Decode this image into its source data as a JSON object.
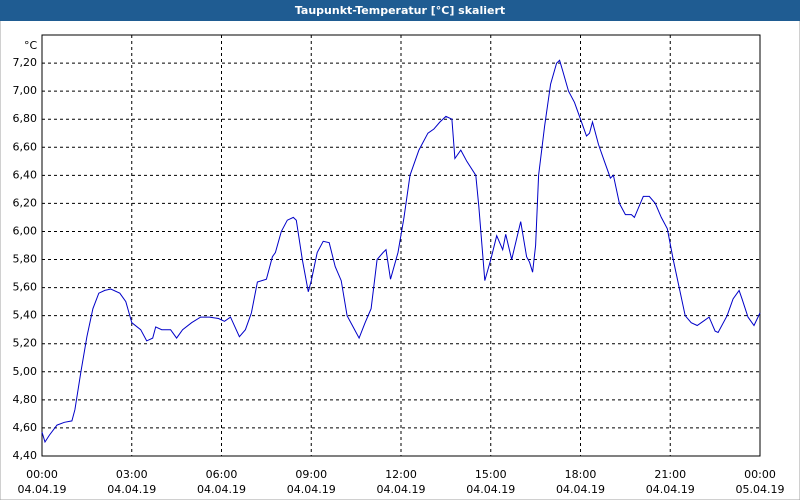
{
  "chart_data": {
    "type": "line",
    "title": "Taupunkt-Temperatur [°C] skaliert",
    "y_unit": "°C",
    "xlim": [
      0,
      24
    ],
    "ylim": [
      4.4,
      7.4
    ],
    "xticks": [
      {
        "value": 0,
        "label": "00:00",
        "date": "04.04.19"
      },
      {
        "value": 3,
        "label": "03:00",
        "date": "04.04.19"
      },
      {
        "value": 6,
        "label": "06:00",
        "date": "04.04.19"
      },
      {
        "value": 9,
        "label": "09:00",
        "date": "04.04.19"
      },
      {
        "value": 12,
        "label": "12:00",
        "date": "04.04.19"
      },
      {
        "value": 15,
        "label": "15:00",
        "date": "04.04.19"
      },
      {
        "value": 18,
        "label": "18:00",
        "date": "04.04.19"
      },
      {
        "value": 21,
        "label": "21:00",
        "date": "04.04.19"
      },
      {
        "value": 24,
        "label": "00:00",
        "date": "05.04.19"
      }
    ],
    "yticks": [
      {
        "value": 4.4,
        "label": "4,40"
      },
      {
        "value": 4.6,
        "label": "4,60"
      },
      {
        "value": 4.8,
        "label": "4,80"
      },
      {
        "value": 5.0,
        "label": "5,00"
      },
      {
        "value": 5.2,
        "label": "5,20"
      },
      {
        "value": 5.4,
        "label": "5,40"
      },
      {
        "value": 5.6,
        "label": "5,60"
      },
      {
        "value": 5.8,
        "label": "5,80"
      },
      {
        "value": 6.0,
        "label": "6,00"
      },
      {
        "value": 6.2,
        "label": "6,20"
      },
      {
        "value": 6.4,
        "label": "6,40"
      },
      {
        "value": 6.6,
        "label": "6,60"
      },
      {
        "value": 6.8,
        "label": "6,80"
      },
      {
        "value": 7.0,
        "label": "7,00"
      },
      {
        "value": 7.2,
        "label": "7,20"
      }
    ],
    "grid": true,
    "series": [
      {
        "color": "#0000c8",
        "x": [
          0,
          0.1,
          0.25,
          0.5,
          0.75,
          1.0,
          1.1,
          1.3,
          1.5,
          1.7,
          1.9,
          2.1,
          2.3,
          2.6,
          2.8,
          3.0,
          3.3,
          3.5,
          3.7,
          3.8,
          4.0,
          4.3,
          4.5,
          4.7,
          5.0,
          5.3,
          5.6,
          5.9,
          6.1,
          6.3,
          6.6,
          6.8,
          7.0,
          7.2,
          7.5,
          7.7,
          7.8,
          8.0,
          8.2,
          8.4,
          8.5,
          8.7,
          8.9,
          9.0,
          9.2,
          9.4,
          9.6,
          9.8,
          10.0,
          10.2,
          10.4,
          10.6,
          10.8,
          11.0,
          11.2,
          11.4,
          11.5,
          11.65,
          11.9,
          12.1,
          12.3,
          12.6,
          12.9,
          13.1,
          13.3,
          13.5,
          13.7,
          13.8,
          14.0,
          14.2,
          14.5,
          14.6,
          14.8,
          15.0,
          15.2,
          15.4,
          15.5,
          15.7,
          15.9,
          16.0,
          16.2,
          16.3,
          16.4,
          16.5,
          16.6,
          16.8,
          17.0,
          17.2,
          17.3,
          17.4,
          17.6,
          17.8,
          18.0,
          18.2,
          18.3,
          18.4,
          18.6,
          18.8,
          19.0,
          19.1,
          19.3,
          19.5,
          19.7,
          19.8,
          20.0,
          20.1,
          20.3,
          20.5,
          20.7,
          20.9,
          21.1,
          21.3,
          21.5,
          21.7,
          21.9,
          22.1,
          22.3,
          22.5,
          22.6,
          22.9,
          23.1,
          23.3,
          23.4,
          23.6,
          23.8,
          24.0
        ],
        "values": [
          4.57,
          4.5,
          4.55,
          4.62,
          4.64,
          4.65,
          4.73,
          5.0,
          5.25,
          5.45,
          5.56,
          5.58,
          5.59,
          5.56,
          5.5,
          5.35,
          5.3,
          5.22,
          5.24,
          5.32,
          5.3,
          5.3,
          5.24,
          5.3,
          5.35,
          5.39,
          5.39,
          5.38,
          5.36,
          5.39,
          5.25,
          5.3,
          5.42,
          5.64,
          5.66,
          5.82,
          5.85,
          6.0,
          6.08,
          6.1,
          6.08,
          5.8,
          5.57,
          5.65,
          5.85,
          5.93,
          5.92,
          5.75,
          5.65,
          5.4,
          5.32,
          5.24,
          5.35,
          5.45,
          5.8,
          5.85,
          5.87,
          5.66,
          5.85,
          6.1,
          6.4,
          6.58,
          6.7,
          6.73,
          6.78,
          6.82,
          6.8,
          6.52,
          6.58,
          6.5,
          6.4,
          6.18,
          5.65,
          5.8,
          5.97,
          5.87,
          5.98,
          5.8,
          5.98,
          6.07,
          5.82,
          5.78,
          5.71,
          5.9,
          6.4,
          6.75,
          7.05,
          7.2,
          7.22,
          7.15,
          7.0,
          6.92,
          6.8,
          6.68,
          6.7,
          6.78,
          6.62,
          6.5,
          6.38,
          6.4,
          6.2,
          6.12,
          6.12,
          6.1,
          6.2,
          6.25,
          6.25,
          6.2,
          6.1,
          6.02,
          5.8,
          5.6,
          5.4,
          5.35,
          5.33,
          5.36,
          5.39,
          5.29,
          5.28,
          5.4,
          5.52,
          5.58,
          5.52,
          5.39,
          5.33,
          5.42
        ]
      }
    ]
  }
}
